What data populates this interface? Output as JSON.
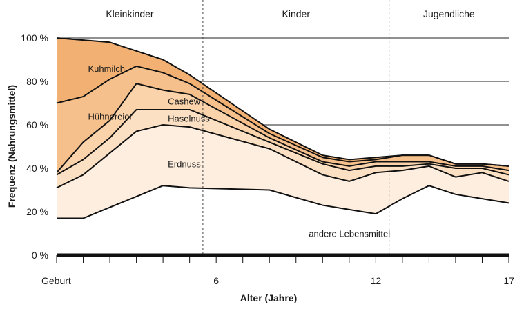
{
  "chart_data": {
    "type": "area",
    "title": "",
    "xlabel": "Alter (Jahre)",
    "ylabel": "Frequenz (Nahrungsmittel)",
    "xlim": [
      0,
      17
    ],
    "ylim": [
      0,
      100
    ],
    "x_ticks": [
      {
        "value": 0,
        "label": "Geburt"
      },
      {
        "value": 6,
        "label": "6"
      },
      {
        "value": 12,
        "label": "12"
      },
      {
        "value": 17,
        "label": "17"
      }
    ],
    "y_ticks": [
      {
        "value": 0,
        "label": "0 %"
      },
      {
        "value": 20,
        "label": "20 %"
      },
      {
        "value": 40,
        "label": "40 %"
      },
      {
        "value": 60,
        "label": "60 %"
      },
      {
        "value": 80,
        "label": "80 %"
      },
      {
        "value": 100,
        "label": "100 %"
      }
    ],
    "phases": [
      {
        "label": "Kleinkinder",
        "from": 0,
        "to": 5.5
      },
      {
        "label": "Kinder",
        "from": 5.5,
        "to": 12.5
      },
      {
        "label": "Jugendliche",
        "from": 12.5,
        "to": 17
      }
    ],
    "x": [
      0,
      1,
      2,
      3,
      4,
      5,
      8,
      10,
      11,
      12,
      13,
      14,
      15,
      16,
      17
    ],
    "boundaries": [
      {
        "name": "bottom",
        "values": [
          17,
          17,
          22,
          27,
          32,
          31,
          30,
          23,
          21,
          19,
          26,
          32,
          28,
          26,
          24
        ]
      },
      {
        "name": "top_andere",
        "values": [
          31,
          37,
          47,
          57,
          60,
          59,
          49,
          37,
          34,
          38,
          39,
          41,
          36,
          38,
          34
        ]
      },
      {
        "name": "top_erdnuss",
        "values": [
          37,
          44,
          54,
          67,
          67,
          67,
          52,
          42,
          39,
          41,
          41,
          42,
          40,
          40,
          37
        ]
      },
      {
        "name": "top_haselnuss",
        "values": [
          38,
          52,
          62,
          79,
          76,
          74,
          54,
          43,
          41,
          43,
          43,
          43,
          41,
          41,
          39
        ]
      },
      {
        "name": "top_cashew",
        "values": [
          70,
          73,
          81,
          87,
          84,
          79,
          56,
          45,
          43,
          44,
          46,
          46,
          42,
          42,
          41
        ]
      },
      {
        "name": "top_huehnereier",
        "values": [
          100,
          99,
          98,
          94,
          90,
          83,
          58,
          46,
          44,
          45,
          46,
          46,
          42,
          42,
          41
        ]
      }
    ],
    "series": [
      {
        "name": "andere Lebensmittel",
        "color": "#ffffff"
      },
      {
        "name": "Erdnuss",
        "color": "#fdeedf"
      },
      {
        "name": "Haselnuss",
        "color": "#fce0c3"
      },
      {
        "name": "Cashew",
        "color": "#fad3ab"
      },
      {
        "name": "Hühnereier",
        "color": "#f6c08c"
      },
      {
        "name": "Kuhmilch",
        "color": "#f2b173"
      }
    ],
    "labels": [
      {
        "text": "Kuhmilch",
        "x": 1,
        "y": 86
      },
      {
        "text": "Hühnereier",
        "x": 1,
        "y": 64
      },
      {
        "text": "Cashew",
        "x": 4,
        "y": 71
      },
      {
        "text": "Haselnuss",
        "x": 4,
        "y": 63
      },
      {
        "text": "Erdnuss",
        "x": 4,
        "y": 42
      },
      {
        "text": "andere Lebensmittel",
        "x": 9.3,
        "y": 10
      }
    ]
  }
}
